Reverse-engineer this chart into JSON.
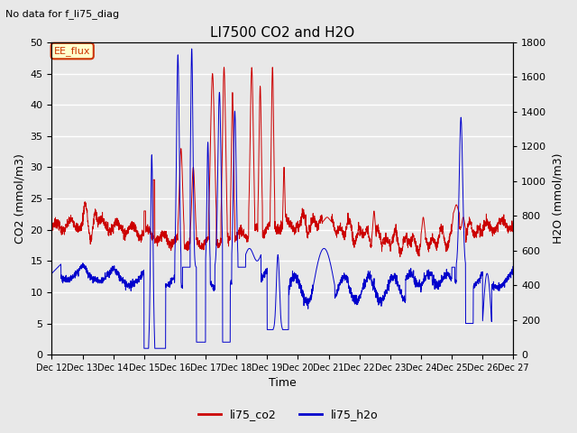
{
  "title": "LI7500 CO2 and H2O",
  "subtitle": "No data for f_li75_diag",
  "xlabel": "Time",
  "ylabel_left": "CO2 (mmol/m3)",
  "ylabel_right": "H2O (mmol/m3)",
  "ylim_left": [
    0,
    50
  ],
  "ylim_right": [
    0,
    1800
  ],
  "yticks_left": [
    0,
    5,
    10,
    15,
    20,
    25,
    30,
    35,
    40,
    45,
    50
  ],
  "yticks_right": [
    0,
    200,
    400,
    600,
    800,
    1000,
    1200,
    1400,
    1600,
    1800
  ],
  "xticklabels": [
    "Dec 12",
    "Dec 13",
    "Dec 14",
    "Dec 15",
    "Dec 16",
    "Dec 17",
    "Dec 18",
    "Dec 19",
    "Dec 20",
    "Dec 21",
    "Dec 22",
    "Dec 23",
    "Dec 24",
    "Dec 25",
    "Dec 26",
    "Dec 27"
  ],
  "legend_label_co2": "li75_co2",
  "legend_label_h2o": "li75_h2o",
  "color_co2": "#cc0000",
  "color_h2o": "#0000cc",
  "annotation_text": "EE_flux",
  "plot_bg_color": "#e8e8e8",
  "grid_color": "#ffffff",
  "n_points": 2880,
  "days": 15
}
